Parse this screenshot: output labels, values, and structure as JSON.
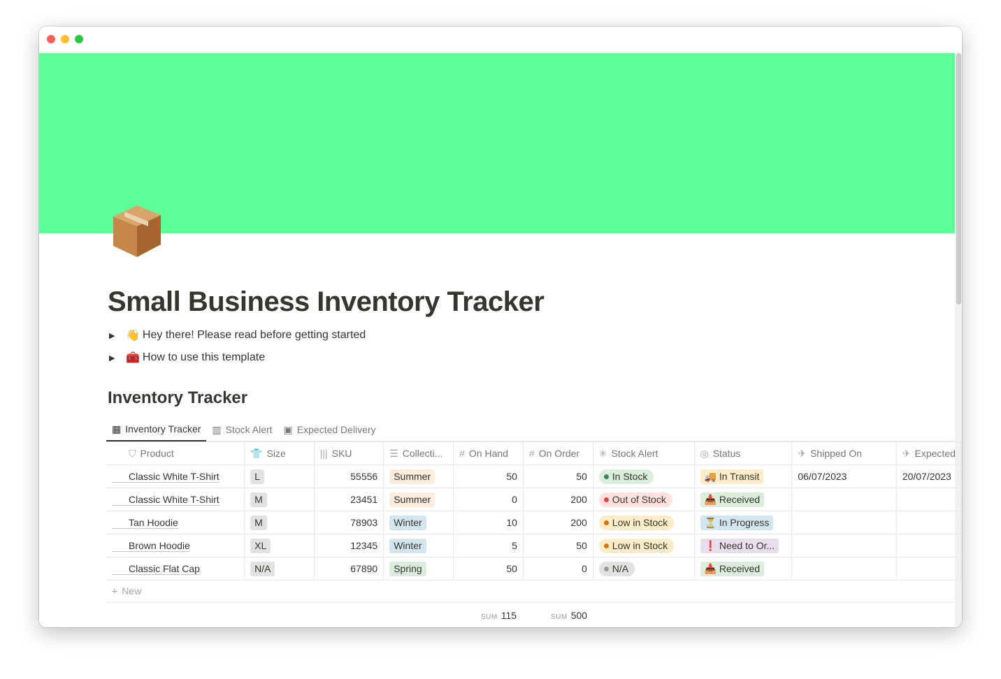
{
  "colors": {
    "banner": "#5CFF98",
    "close": "#ff5f57",
    "minimize": "#febc2e",
    "zoom": "#28c840"
  },
  "page": {
    "icon": "package-icon",
    "title": "Small Business Inventory Tracker"
  },
  "toggles": [
    {
      "emoji": "👋",
      "label": "Hey there! Please read before getting started"
    },
    {
      "emoji": "🧰",
      "label": "How to use this template"
    }
  ],
  "database": {
    "title": "Inventory Tracker",
    "tabs": [
      {
        "label": "Inventory Tracker",
        "icon": "table-icon"
      },
      {
        "label": "Stock Alert",
        "icon": "board-icon"
      },
      {
        "label": "Expected Delivery",
        "icon": "calendar-icon"
      }
    ],
    "columns": [
      {
        "label": "Product",
        "icon": "bookmark-icon"
      },
      {
        "label": "Size",
        "icon": "tshirt-icon"
      },
      {
        "label": "SKU",
        "icon": "barcode-icon"
      },
      {
        "label": "Collecti...",
        "icon": "list-icon"
      },
      {
        "label": "On Hand",
        "icon": "hash-icon"
      },
      {
        "label": "On Order",
        "icon": "hash-icon"
      },
      {
        "label": "Stock Alert",
        "icon": "loading-icon"
      },
      {
        "label": "Status",
        "icon": "status-icon"
      },
      {
        "label": "Shipped On",
        "icon": "plane-takeoff-icon"
      },
      {
        "label": "Expected",
        "icon": "plane-landing-icon"
      }
    ],
    "rows": [
      {
        "product": "Classic White T-Shirt",
        "size": "L",
        "sku": "55556",
        "collection": "Summer",
        "on_hand": "50",
        "on_order": "50",
        "alert": "In Stock",
        "status_emoji": "🚚",
        "status": "In Transit",
        "shipped": "06/07/2023",
        "expected": "20/07/2023"
      },
      {
        "product": "Classic White T-Shirt",
        "size": "M",
        "sku": "23451",
        "collection": "Summer",
        "on_hand": "0",
        "on_order": "200",
        "alert": "Out of Stock",
        "status_emoji": "📥",
        "status": "Received",
        "shipped": "",
        "expected": ""
      },
      {
        "product": "Tan Hoodie",
        "size": "M",
        "sku": "78903",
        "collection": "Winter",
        "on_hand": "10",
        "on_order": "200",
        "alert": "Low in Stock",
        "status_emoji": "⏳",
        "status": "In Progress",
        "shipped": "",
        "expected": ""
      },
      {
        "product": "Brown Hoodie",
        "size": "XL",
        "sku": "12345",
        "collection": "Winter",
        "on_hand": "5",
        "on_order": "50",
        "alert": "Low in Stock",
        "status_emoji": "❗",
        "status": "Need to Or...",
        "shipped": "",
        "expected": ""
      },
      {
        "product": "Classic Flat Cap",
        "size": "N/A",
        "sku": "67890",
        "collection": "Spring",
        "on_hand": "50",
        "on_order": "0",
        "alert": "N/A",
        "status_emoji": "📥",
        "status": "Received",
        "shipped": "",
        "expected": ""
      }
    ],
    "new_label": "New",
    "sums": {
      "label": "SUM",
      "on_hand": "115",
      "on_order": "500"
    }
  }
}
